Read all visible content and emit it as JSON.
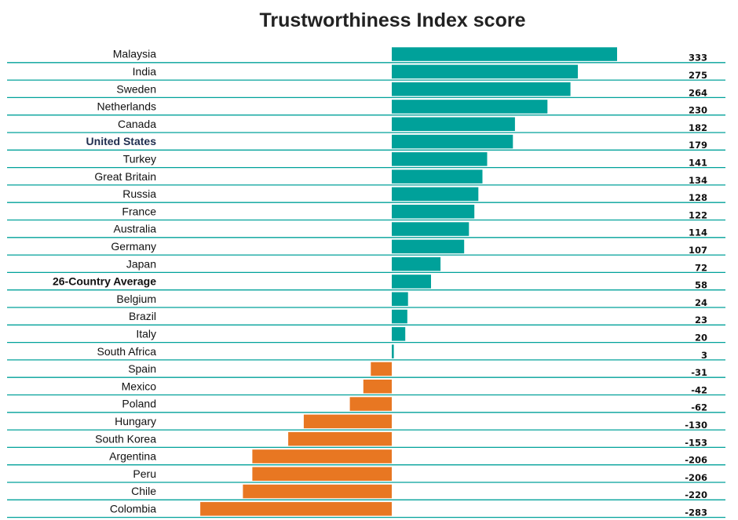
{
  "chart_data": {
    "type": "bar",
    "orientation": "horizontal",
    "title": "Trustworthiness Index score",
    "categories": [
      "Malaysia",
      "India",
      "Sweden",
      "Netherlands",
      "Canada",
      "United States",
      "Turkey",
      "Great Britain",
      "Russia",
      "France",
      "Australia",
      "Germany",
      "Japan",
      "26-Country Average",
      "Belgium",
      "Brazil",
      "Italy",
      "South Africa",
      "Spain",
      "Mexico",
      "Poland",
      "Hungary",
      "South Korea",
      "Argentina",
      "Peru",
      "Chile",
      "Colombia"
    ],
    "values": [
      333,
      275,
      264,
      230,
      182,
      179,
      141,
      134,
      128,
      122,
      114,
      107,
      72,
      58,
      24,
      23,
      20,
      3,
      -31,
      -42,
      -62,
      -130,
      -153,
      -206,
      -206,
      -220,
      -283
    ],
    "value_labels": [
      "333",
      "275",
      "264",
      "230",
      "182",
      "179",
      "141",
      "134",
      "128",
      "122",
      "114",
      "107",
      "72",
      "58",
      "24",
      "23",
      "20",
      "3",
      "-31",
      "-42",
      "-62",
      "-130",
      "-153",
      "-206",
      "-206",
      "-220",
      "-283"
    ],
    "highlighted": [
      "United States",
      "26-Country Average"
    ],
    "positive_color": "#00a19a",
    "negative_color": "#e87722",
    "highlight_us_color": "#1f2d4e",
    "divider_color": "#00a19a",
    "xlim": [
      -283,
      333
    ],
    "grid": false,
    "legend": "none"
  }
}
